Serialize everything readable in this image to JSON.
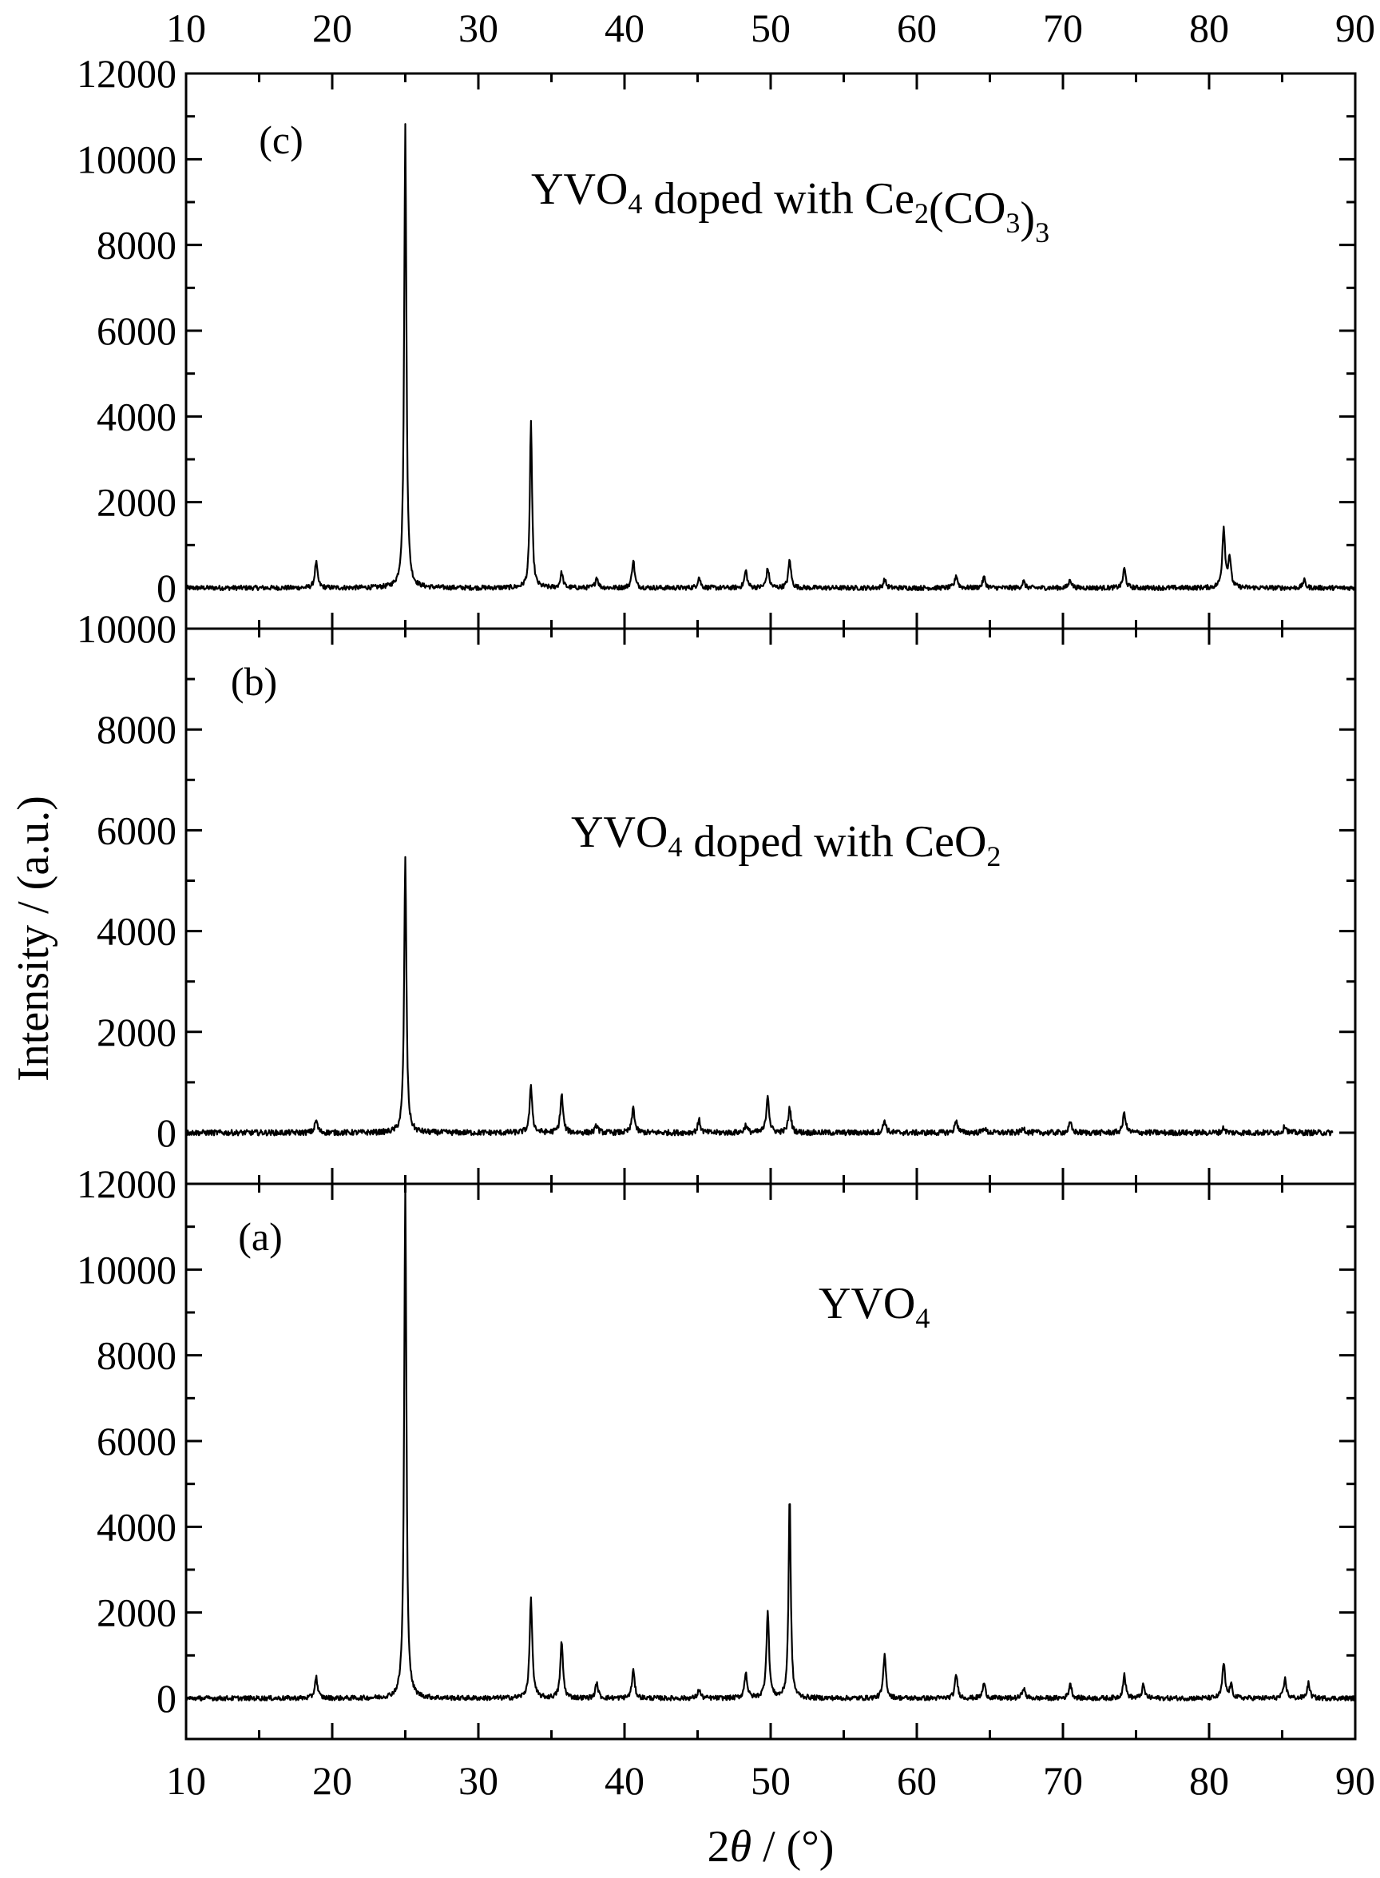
{
  "chart_data": [
    {
      "type": "line",
      "panel": "c",
      "tag": "(c)",
      "label_parts": [
        {
          "t": "YVO",
          "sub": false
        },
        {
          "t": "4",
          "sub": true
        },
        {
          "t": " doped with Ce",
          "sub": false
        },
        {
          "t": "2",
          "sub": true
        },
        {
          "t": "(CO",
          "sub": false
        },
        {
          "t": "3",
          "sub": true
        },
        {
          "t": ")",
          "sub": false
        },
        {
          "t": "3",
          "sub": true
        }
      ],
      "xlim": [
        10,
        90
      ],
      "ylim": [
        -300,
        12000
      ],
      "yticks": [
        "0",
        "2000",
        "4000",
        "6000",
        "8000",
        "10000",
        "12000"
      ],
      "peaks": [
        [
          18.9,
          600
        ],
        [
          25.0,
          10800
        ],
        [
          33.6,
          3900
        ],
        [
          35.7,
          350
        ],
        [
          38.1,
          250
        ],
        [
          40.6,
          650
        ],
        [
          45.1,
          250
        ],
        [
          48.3,
          400
        ],
        [
          49.8,
          450
        ],
        [
          51.3,
          650
        ],
        [
          57.8,
          200
        ],
        [
          62.7,
          300
        ],
        [
          64.6,
          250
        ],
        [
          67.3,
          150
        ],
        [
          70.5,
          200
        ],
        [
          74.2,
          450
        ],
        [
          81.0,
          1400
        ],
        [
          81.4,
          700
        ],
        [
          86.5,
          180
        ]
      ]
    },
    {
      "type": "line",
      "panel": "b",
      "tag": "(b)",
      "label_parts": [
        {
          "t": "YVO",
          "sub": false
        },
        {
          "t": "4",
          "sub": true
        },
        {
          "t": "  doped with CeO",
          "sub": false
        },
        {
          "t": "2",
          "sub": true
        }
      ],
      "xlim": [
        10,
        90
      ],
      "ylim": [
        -400,
        10000
      ],
      "yticks": [
        "0",
        "2000",
        "4000",
        "6000",
        "8000",
        "10000"
      ],
      "trace_end": 88.5,
      "peaks": [
        [
          18.9,
          250
        ],
        [
          25.0,
          5500
        ],
        [
          33.6,
          900
        ],
        [
          35.7,
          750
        ],
        [
          38.1,
          150
        ],
        [
          40.6,
          500
        ],
        [
          45.1,
          250
        ],
        [
          48.3,
          150
        ],
        [
          49.8,
          750
        ],
        [
          51.3,
          500
        ],
        [
          57.8,
          250
        ],
        [
          62.7,
          250
        ],
        [
          64.6,
          100
        ],
        [
          67.3,
          100
        ],
        [
          70.5,
          200
        ],
        [
          74.2,
          400
        ],
        [
          81.0,
          100
        ],
        [
          85.2,
          150
        ]
      ]
    },
    {
      "type": "line",
      "panel": "a",
      "tag": "(a)",
      "label_parts": [
        {
          "t": "YVO",
          "sub": false
        },
        {
          "t": "4",
          "sub": true
        }
      ],
      "xlim": [
        10,
        90
      ],
      "ylim": [
        -1000,
        12000
      ],
      "yticks": [
        "0",
        "2000",
        "4000",
        "6000",
        "8000",
        "10000",
        "12000"
      ],
      "peaks": [
        [
          18.9,
          500
        ],
        [
          25.0,
          12000
        ],
        [
          33.6,
          2300
        ],
        [
          35.7,
          1300
        ],
        [
          38.1,
          350
        ],
        [
          40.6,
          650
        ],
        [
          45.1,
          200
        ],
        [
          48.3,
          600
        ],
        [
          49.8,
          2000
        ],
        [
          51.3,
          4700
        ],
        [
          57.8,
          1000
        ],
        [
          62.7,
          550
        ],
        [
          64.6,
          350
        ],
        [
          67.3,
          250
        ],
        [
          70.5,
          350
        ],
        [
          74.2,
          550
        ],
        [
          75.5,
          300
        ],
        [
          81.0,
          800
        ],
        [
          81.5,
          300
        ],
        [
          85.2,
          450
        ],
        [
          86.8,
          350
        ]
      ]
    }
  ],
  "axes": {
    "xticks": [
      "10",
      "20",
      "30",
      "40",
      "50",
      "60",
      "70",
      "80",
      "90"
    ],
    "xlabel_parts": [
      {
        "t": "2",
        "italic": false
      },
      {
        "t": "θ",
        "italic": true
      },
      {
        "t": " / (°)",
        "italic": false
      }
    ],
    "ylabel": "Intensity / (a.u.)"
  },
  "colors": {
    "line": "#000000",
    "axis": "#000000",
    "background": "#ffffff"
  }
}
